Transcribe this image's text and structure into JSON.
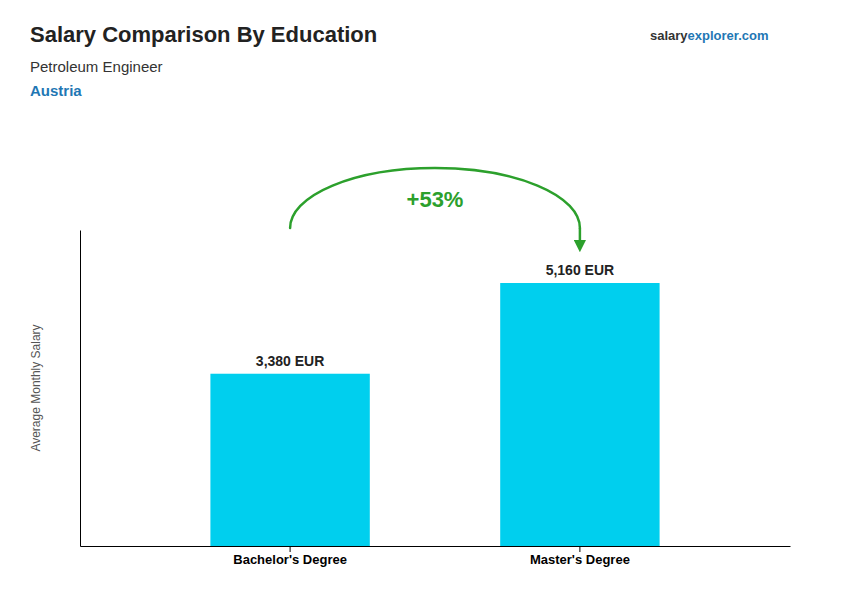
{
  "chart_data": {
    "type": "bar",
    "title": "Salary Comparison By Education",
    "subtitle": "Petroleum Engineer",
    "annotations": [
      "Austria",
      "salary",
      "explorer.com",
      "+53%"
    ],
    "ylabel": "Average Monthly Salary",
    "categories": [
      "Bachelor's Degree",
      "Master's Degree"
    ],
    "values": [
      3380,
      5160
    ],
    "value_labels": [
      "3,380 EUR",
      "5,160 EUR"
    ],
    "color": "#00cfee",
    "ylim": [
      0,
      6200
    ],
    "data_labels": true,
    "tick_labels": "x",
    "grid": false
  }
}
